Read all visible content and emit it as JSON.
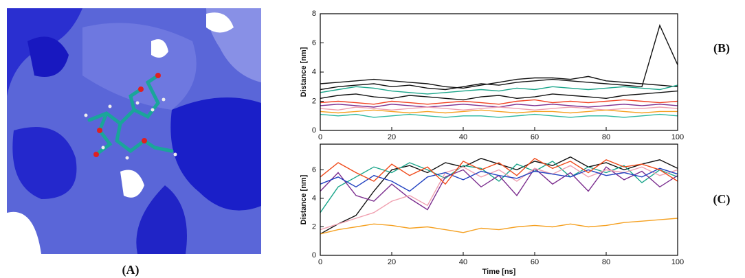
{
  "labels": [
    "(A)",
    "(B)",
    "(C)"
  ],
  "chart_data": [
    {
      "type": "line",
      "ylabel": "Distance [nm]",
      "x": [
        0,
        5,
        10,
        15,
        20,
        25,
        30,
        35,
        40,
        45,
        50,
        55,
        60,
        65,
        70,
        75,
        80,
        85,
        90,
        95,
        100
      ],
      "xlim": [
        0,
        100
      ],
      "xticks": [
        0,
        20,
        40,
        60,
        80,
        100
      ],
      "ylim": [
        0,
        8
      ],
      "yticks": [
        0,
        2,
        4,
        6,
        8
      ],
      "series": [
        {
          "color": "#111111",
          "values": [
            2.8,
            3.0,
            3.1,
            3.2,
            3.0,
            3.1,
            2.9,
            2.8,
            3.0,
            3.2,
            3.1,
            3.3,
            3.4,
            3.5,
            3.4,
            3.3,
            3.2,
            3.1,
            3.0,
            7.2,
            4.5
          ]
        },
        {
          "color": "#111111",
          "values": [
            3.2,
            3.3,
            3.4,
            3.5,
            3.4,
            3.3,
            3.2,
            3.0,
            2.9,
            3.1,
            3.3,
            3.5,
            3.6,
            3.6,
            3.5,
            3.7,
            3.4,
            3.3,
            3.2,
            3.1,
            3.0
          ]
        },
        {
          "color": "#1aa58a",
          "values": [
            2.6,
            2.8,
            3.0,
            2.9,
            2.7,
            2.6,
            2.5,
            2.6,
            2.7,
            2.8,
            2.7,
            2.9,
            2.8,
            3.0,
            2.9,
            2.8,
            2.9,
            3.0,
            2.9,
            2.8,
            3.1
          ]
        },
        {
          "color": "#111111",
          "values": [
            2.2,
            2.4,
            2.5,
            2.3,
            2.2,
            2.4,
            2.3,
            2.2,
            2.1,
            2.3,
            2.4,
            2.2,
            2.3,
            2.5,
            2.4,
            2.3,
            2.2,
            2.4,
            2.5,
            2.6,
            2.7
          ]
        },
        {
          "color": "#f04020",
          "values": [
            1.9,
            2.0,
            1.9,
            1.8,
            2.0,
            1.9,
            1.8,
            1.9,
            2.0,
            1.9,
            1.8,
            2.0,
            2.1,
            1.9,
            2.0,
            1.9,
            2.0,
            2.1,
            2.0,
            1.9,
            2.0
          ]
        },
        {
          "color": "#7b2d8e",
          "values": [
            1.7,
            1.8,
            1.7,
            1.6,
            1.8,
            1.7,
            1.6,
            1.7,
            1.8,
            1.7,
            1.6,
            1.8,
            1.7,
            1.8,
            1.7,
            1.6,
            1.7,
            1.8,
            1.7,
            1.8,
            1.7
          ]
        },
        {
          "color": "#f0a0b0",
          "values": [
            1.5,
            1.4,
            1.6,
            1.5,
            1.4,
            1.5,
            1.6,
            1.5,
            1.4,
            1.5,
            1.6,
            1.5,
            1.4,
            1.5,
            1.6,
            1.5,
            1.4,
            1.5,
            1.5,
            1.6,
            1.5
          ]
        },
        {
          "color": "#f5a020",
          "values": [
            1.3,
            1.2,
            1.3,
            1.4,
            1.3,
            1.2,
            1.3,
            1.2,
            1.3,
            1.4,
            1.3,
            1.2,
            1.3,
            1.3,
            1.2,
            1.3,
            1.4,
            1.3,
            1.2,
            1.3,
            1.3
          ]
        },
        {
          "color": "#2ab8a0",
          "values": [
            1.1,
            1.0,
            1.1,
            0.9,
            1.0,
            1.1,
            1.0,
            0.9,
            1.0,
            1.0,
            0.9,
            1.0,
            1.1,
            1.0,
            0.9,
            1.0,
            1.0,
            0.9,
            1.0,
            1.1,
            1.0
          ]
        }
      ]
    },
    {
      "type": "line",
      "xlabel": "Time [ns]",
      "ylabel": "Distance [nm]",
      "x": [
        0,
        5,
        10,
        15,
        20,
        25,
        30,
        35,
        40,
        45,
        50,
        55,
        60,
        65,
        70,
        75,
        80,
        85,
        90,
        95,
        100
      ],
      "xlim": [
        0,
        100
      ],
      "xticks": [
        0,
        20,
        40,
        60,
        80,
        100
      ],
      "ylim": [
        0,
        7.8
      ],
      "yticks": [
        0,
        2,
        4,
        6
      ],
      "series": [
        {
          "color": "#111111",
          "values": [
            1.5,
            2.2,
            2.8,
            4.5,
            6.0,
            6.3,
            5.8,
            6.5,
            6.2,
            6.8,
            6.4,
            6.0,
            6.6,
            6.3,
            6.9,
            6.2,
            6.5,
            6.0,
            6.4,
            6.7,
            6.1
          ]
        },
        {
          "color": "#1aa58a",
          "values": [
            3.0,
            4.8,
            5.5,
            6.2,
            5.8,
            6.5,
            6.0,
            5.4,
            6.3,
            6.1,
            5.2,
            6.4,
            5.9,
            6.6,
            5.5,
            6.2,
            5.8,
            6.3,
            5.1,
            6.0,
            5.5
          ]
        },
        {
          "color": "#7b2d8e",
          "values": [
            4.5,
            5.8,
            4.2,
            3.8,
            5.0,
            4.0,
            3.2,
            5.5,
            6.0,
            4.8,
            5.6,
            4.2,
            6.1,
            5.0,
            5.8,
            4.5,
            6.2,
            5.3,
            5.9,
            4.8,
            5.6
          ]
        },
        {
          "color": "#f0a0b0",
          "values": [
            1.8,
            2.2,
            2.6,
            3.0,
            3.8,
            4.2,
            3.5,
            5.8,
            6.2,
            5.5,
            6.0,
            5.2,
            6.1,
            5.7,
            6.3,
            5.5,
            6.0,
            5.8,
            6.2,
            5.6,
            6.0
          ]
        },
        {
          "color": "#2040c0",
          "values": [
            5.0,
            5.5,
            4.8,
            5.6,
            5.2,
            4.5,
            5.5,
            5.8,
            5.3,
            5.9,
            5.6,
            5.4,
            5.9,
            5.7,
            5.5,
            6.0,
            5.6,
            5.8,
            5.5,
            6.1,
            5.7
          ]
        },
        {
          "color": "#f04a1a",
          "values": [
            5.5,
            6.5,
            5.8,
            5.2,
            6.4,
            5.6,
            6.2,
            5.0,
            6.6,
            6.0,
            6.5,
            5.6,
            6.8,
            6.1,
            6.6,
            5.8,
            6.7,
            6.2,
            6.4,
            6.0,
            5.2
          ]
        },
        {
          "color": "#f5a020",
          "values": [
            1.5,
            1.8,
            2.0,
            2.2,
            2.1,
            1.9,
            2.0,
            1.8,
            1.6,
            1.9,
            1.8,
            2.0,
            2.1,
            2.0,
            2.2,
            2.0,
            2.1,
            2.3,
            2.4,
            2.5,
            2.6
          ]
        }
      ]
    }
  ]
}
